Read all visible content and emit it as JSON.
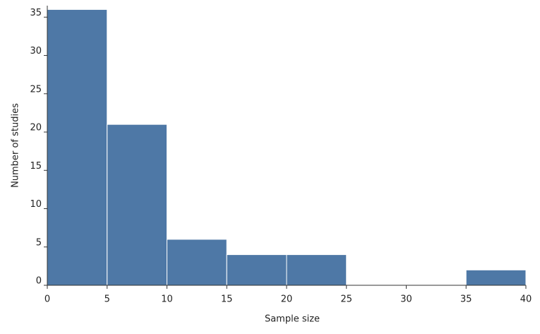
{
  "chart_data": {
    "type": "histogram",
    "xlabel": "Sample size",
    "ylabel": "Number of studies",
    "bins": [
      0,
      5,
      10,
      15,
      20,
      25,
      30,
      35,
      40
    ],
    "values": [
      36,
      21,
      6,
      4,
      4,
      0,
      0,
      2
    ],
    "color": "#4e78a6",
    "xlim": [
      0,
      40
    ],
    "xticks": [
      0,
      5,
      10,
      15,
      20,
      25,
      30,
      35,
      40
    ],
    "ylim": [
      0,
      36.5
    ],
    "yticks": [
      0,
      5,
      10,
      15,
      20,
      25,
      30,
      35
    ]
  }
}
